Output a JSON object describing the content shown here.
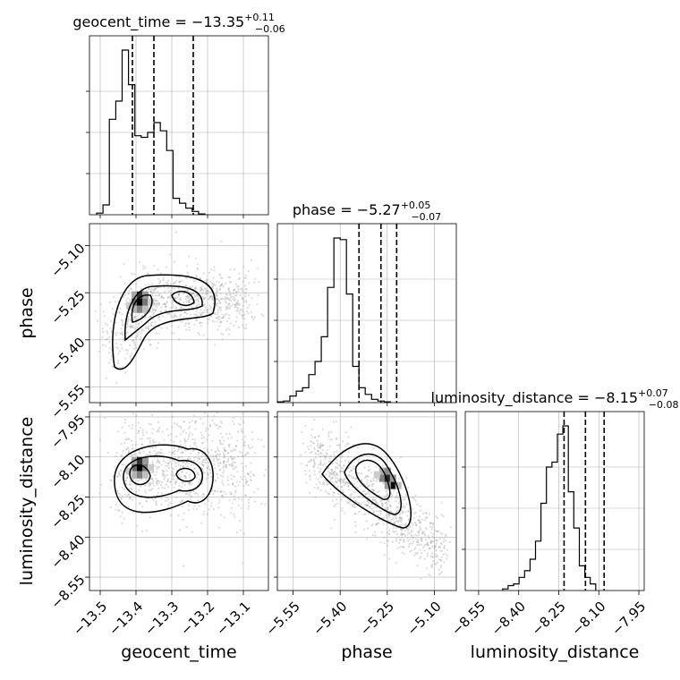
{
  "chart_data": {
    "type": "corner",
    "parameters": [
      {
        "name": "geocent_time",
        "median": "−13.35",
        "plus": "+0.11",
        "minus": "−0.06",
        "range": [
          -13.53,
          -13.03
        ],
        "ticks": [
          -13.5,
          -13.4,
          -13.3,
          -13.2,
          -13.1
        ],
        "tick_labels": [
          "−13.5",
          "−13.4",
          "−13.3",
          "−13.2",
          "−13.1"
        ],
        "quantiles": [
          -13.41,
          -13.35,
          -13.24
        ],
        "hist": {
          "start": -13.51,
          "width": 0.0178,
          "values": [
            0.01,
            0.06,
            0.58,
            0.69,
            1.0,
            0.79,
            0.48,
            0.47,
            0.5,
            0.56,
            0.51,
            0.39,
            0.1,
            0.07,
            0.04,
            0.02,
            0.005
          ]
        }
      },
      {
        "name": "phase",
        "median": "−5.27",
        "plus": "+0.05",
        "minus": "−0.07",
        "range": [
          -5.6,
          -5.03
        ],
        "ticks": [
          -5.55,
          -5.4,
          -5.25,
          -5.1
        ],
        "tick_labels": [
          "−5.55",
          "−5.40",
          "−5.25",
          "−5.10"
        ],
        "quantiles": [
          -5.34,
          -5.27,
          -5.22
        ],
        "hist": {
          "start": -5.6,
          "width": 0.02,
          "values": [
            0.005,
            0.01,
            0.04,
            0.07,
            0.09,
            0.17,
            0.25,
            0.4,
            0.7,
            1.0,
            0.99,
            0.66,
            0.22,
            0.09,
            0.05,
            0.02,
            0.01,
            0.005
          ]
        }
      },
      {
        "name": "luminosity_distance",
        "median": "−8.15",
        "plus": "+0.07",
        "minus": "−0.08",
        "range": [
          -8.6,
          -7.93
        ],
        "ticks": [
          -8.55,
          -8.4,
          -8.25,
          -8.1,
          -7.95
        ],
        "tick_labels": [
          "−8.55",
          "−8.40",
          "−8.25",
          "−8.10",
          "−7.95"
        ],
        "quantiles": [
          -8.23,
          -8.15,
          -8.08
        ],
        "hist": {
          "start": -8.46,
          "width": 0.0205,
          "values": [
            0.01,
            0.03,
            0.04,
            0.08,
            0.12,
            0.19,
            0.3,
            0.53,
            0.75,
            0.78,
            0.95,
            1.0,
            0.6,
            0.38,
            0.15,
            0.08,
            0.04
          ]
        }
      }
    ],
    "grid": true,
    "peak_2d": [
      {
        "pair": [
          "geocent_time",
          "phase"
        ],
        "x": -13.39,
        "y": -5.28
      },
      {
        "pair": [
          "geocent_time",
          "luminosity_distance"
        ],
        "x": -13.39,
        "y": -8.14
      },
      {
        "pair": [
          "phase",
          "luminosity_distance"
        ],
        "x": -5.25,
        "y": -8.18
      }
    ]
  }
}
